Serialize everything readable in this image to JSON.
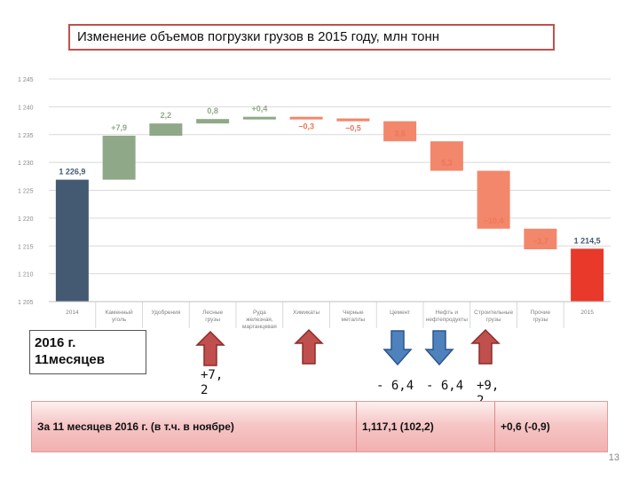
{
  "title": "Изменение объемов погрузки грузов в 2015 году, млн тонн",
  "chart_data": {
    "type": "waterfall",
    "y_ticks": [
      "1 245",
      "1 240",
      "1 235",
      "1 230",
      "1 225",
      "1 220",
      "1 215",
      "1 210",
      "1 205"
    ],
    "ylim": [
      1205,
      1245
    ],
    "categories": [
      {
        "label": [
          "2014"
        ],
        "value": 1226.9,
        "kind": "total",
        "text": "1 226,9"
      },
      {
        "label": [
          "Каменный",
          "уголь"
        ],
        "value": 7.9,
        "kind": "up",
        "text": "+7,9"
      },
      {
        "label": [
          "Удобрения"
        ],
        "value": 2.2,
        "kind": "up",
        "text": "2,2"
      },
      {
        "label": [
          "Лесные",
          "грузы"
        ],
        "value": 0.8,
        "kind": "up",
        "text": "0,8"
      },
      {
        "label": [
          "Руда",
          "железная,",
          "марганцевая"
        ],
        "value": 0.4,
        "kind": "up",
        "text": "+0,4"
      },
      {
        "label": [
          "Химикаты"
        ],
        "value": -0.3,
        "kind": "down",
        "text": "−0,3"
      },
      {
        "label": [
          "Черные",
          "металлы"
        ],
        "value": -0.5,
        "kind": "down",
        "text": "−0,5"
      },
      {
        "label": [
          "Цемент"
        ],
        "value": -3.6,
        "kind": "down",
        "text": "3,6"
      },
      {
        "label": [
          "Нефть и",
          "нефтепродукты"
        ],
        "value": -5.3,
        "kind": "down",
        "text": "5,3"
      },
      {
        "label": [
          "Строительные",
          "грузы"
        ],
        "value": -10.4,
        "kind": "down",
        "text": "−10,4"
      },
      {
        "label": [
          "Прочие",
          "грузы"
        ],
        "value": -3.7,
        "kind": "down",
        "text": "−3,7"
      },
      {
        "label": [
          "2015"
        ],
        "value": 1214.5,
        "kind": "final",
        "text": "1 214,5"
      }
    ],
    "colors": {
      "total": "#445a72",
      "up": "#8fa988",
      "down": "#f2876b",
      "final": "#e8392a",
      "up_text": "#8fa988",
      "down_text": "#ee7658"
    }
  },
  "note": {
    "line1": "2016 г.",
    "line2": "11месяцев"
  },
  "arrows": [
    {
      "dir": "up",
      "color": "#c0504d",
      "delta": "+7,\n2"
    },
    {
      "dir": "up",
      "color": "#c0504d",
      "delta": ""
    },
    {
      "dir": "down",
      "color": "#4f81bd",
      "delta": "- 6,4"
    },
    {
      "dir": "down",
      "color": "#4f81bd",
      "delta": "- 6,4"
    },
    {
      "dir": "up",
      "color": "#c0504d",
      "delta": "+9,\n2"
    }
  ],
  "summary": {
    "period": "За 11 месяцев 2016 г. (в т.ч. в ноябре)",
    "volume": "1,117,1 (102,2)",
    "change": "+0,6 (-0,9)"
  },
  "page_number": "13"
}
